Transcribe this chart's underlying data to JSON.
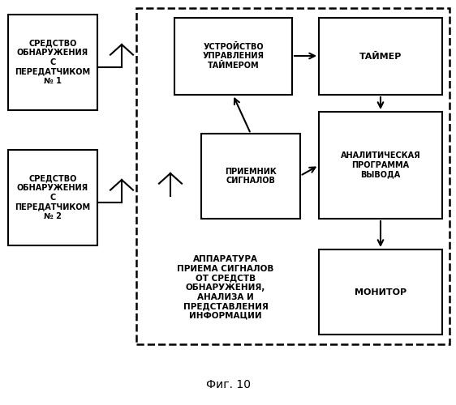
{
  "fig_label": "Фиг. 10",
  "background_color": "#ffffff",
  "box1_text": "СРЕДСТВО\nОБНАРУЖЕНИЯ\nС\nПЕРЕДАТЧИКОМ\n№ 1",
  "box2_text": "СРЕДСТВО\nОБНАРУЖЕНИЯ\nС\nПЕРЕДАТЧИКОМ\n№ 2",
  "box_ustrojstvo_text": "УСТРОЙСТВО\nУПРАВЛЕНИЯ\nТАЙМЕРОМ",
  "box_tajmer_text": "ТАЙМЕР",
  "box_priemnik_text": "ПРИЕМНИК\nСИГНАЛОВ",
  "box_analitich_text": "АНАЛИТИЧЕСКАЯ\nПРОГРАММА\nВЫВОДА",
  "box_monitor_text": "МОНИТОР",
  "label_text": "АППАРАТУРА\nПРИЕМА СИГНАЛОВ\nОТ СРЕДСТВ\nОБНАРУЖЕНИЯ,\nАНАЛИЗА И\nПРЕДСТАВЛЕНИЯ\nИНФОРМАЦИИ",
  "font_size": 7.0,
  "label_font_size": 7.5
}
